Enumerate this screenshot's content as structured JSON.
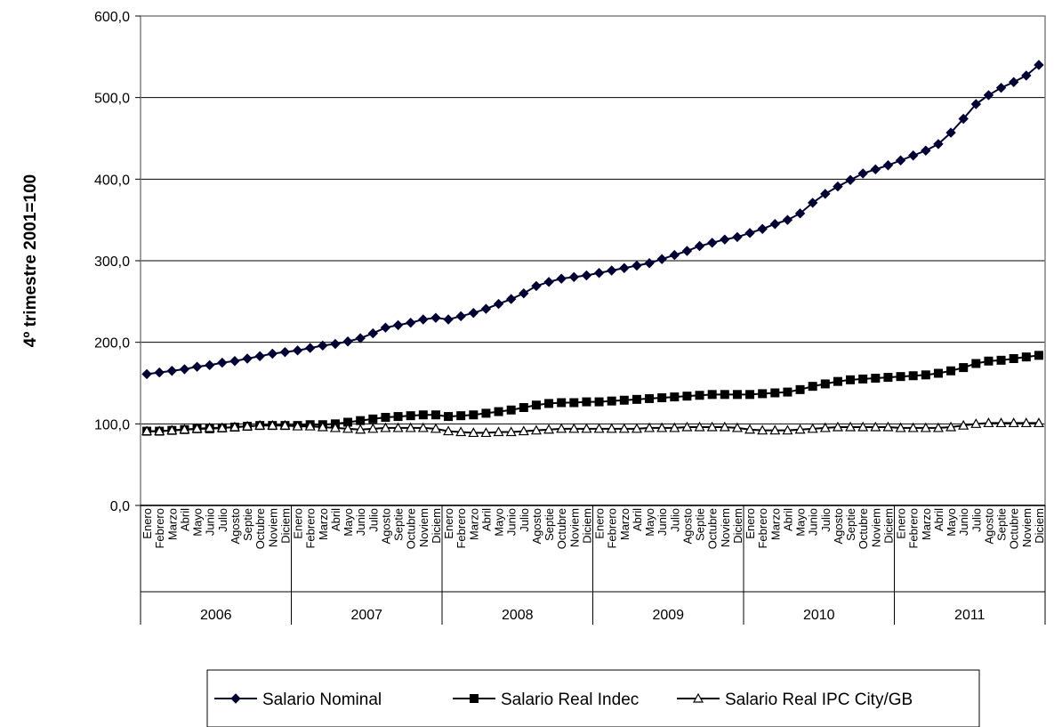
{
  "chart_data": {
    "type": "line",
    "title": "",
    "xlabel": "",
    "ylabel": "4º trimestre 2001=100",
    "ylim": [
      0,
      600
    ],
    "yticks": [
      "0,0",
      "100,0",
      "200,0",
      "300,0",
      "400,0",
      "500,0",
      "600,0"
    ],
    "grid": true,
    "legend_position": "bottom",
    "years": [
      "2006",
      "2007",
      "2008",
      "2009",
      "2010",
      "2011"
    ],
    "months": [
      "Enero",
      "Febrero",
      "Marzo",
      "Abril",
      "Mayo",
      "Junio",
      "Julio",
      "Agosto",
      "Septie",
      "Octubre",
      "Noviem",
      "Diciem"
    ],
    "series": [
      {
        "name": "Salario Nominal",
        "marker": "diamond",
        "color": "#000033",
        "values": [
          161,
          163,
          165,
          167,
          170,
          172,
          175,
          177,
          180,
          183,
          186,
          188,
          190,
          193,
          196,
          198,
          201,
          205,
          211,
          218,
          221,
          224,
          228,
          230,
          228,
          232,
          236,
          241,
          247,
          253,
          260,
          269,
          274,
          278,
          280,
          282,
          285,
          288,
          291,
          294,
          297,
          302,
          307,
          312,
          318,
          322,
          326,
          329,
          334,
          339,
          345,
          350,
          358,
          371,
          382,
          391,
          399,
          407,
          412,
          417,
          423,
          429,
          435,
          443,
          457,
          474,
          492,
          503,
          512,
          519,
          527,
          540
        ]
      },
      {
        "name": "Salario Real Indec",
        "marker": "square",
        "color": "#000000",
        "values": [
          91,
          91,
          92,
          93,
          94,
          94,
          95,
          96,
          97,
          98,
          98,
          98,
          98,
          99,
          99,
          100,
          102,
          104,
          106,
          108,
          109,
          110,
          111,
          111,
          109,
          110,
          111,
          113,
          115,
          117,
          120,
          123,
          125,
          126,
          126,
          127,
          127,
          128,
          129,
          130,
          131,
          132,
          133,
          134,
          135,
          136,
          136,
          136,
          136,
          137,
          138,
          139,
          142,
          146,
          149,
          152,
          154,
          155,
          156,
          157,
          158,
          159,
          160,
          162,
          165,
          169,
          174,
          177,
          178,
          180,
          182,
          184
        ]
      },
      {
        "name": "Salario Real IPC City/GB",
        "marker": "triangle",
        "color": "#000000",
        "values": [
          91,
          91,
          92,
          93,
          94,
          95,
          95,
          96,
          97,
          98,
          98,
          98,
          97,
          97,
          96,
          95,
          94,
          93,
          94,
          95,
          95,
          95,
          95,
          94,
          91,
          90,
          89,
          89,
          90,
          90,
          91,
          92,
          93,
          94,
          94,
          94,
          94,
          94,
          94,
          94,
          95,
          95,
          95,
          96,
          96,
          96,
          96,
          95,
          93,
          92,
          92,
          92,
          93,
          94,
          95,
          96,
          96,
          96,
          96,
          96,
          95,
          95,
          95,
          95,
          96,
          98,
          100,
          101,
          101,
          101,
          101,
          101
        ]
      }
    ]
  }
}
